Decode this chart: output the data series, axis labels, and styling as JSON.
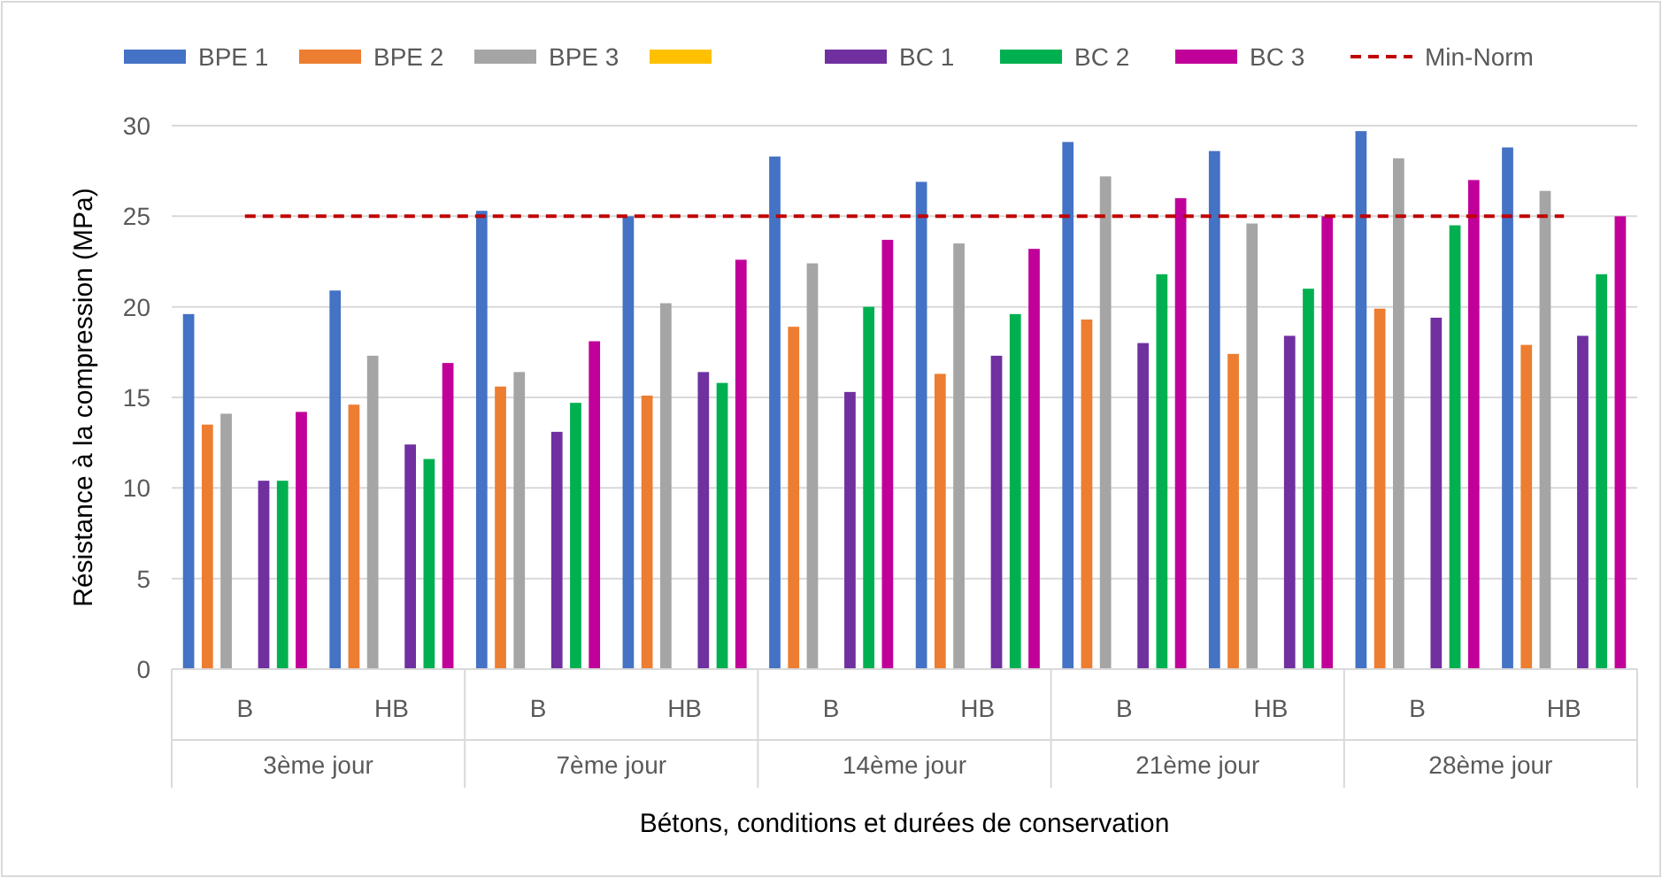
{
  "chart_data": {
    "type": "bar",
    "xlabel": "Bétons, conditions et durées de conservation",
    "ylabel": "Résistance à la compression (MPa)",
    "categories": [
      "B",
      "HB",
      "B",
      "HB",
      "B",
      "HB",
      "B",
      "HB",
      "B",
      "HB"
    ],
    "annotations": [
      "3ème jour",
      "7ème jour",
      "14ème jour",
      "21ème jour",
      "28ème jour"
    ],
    "ylim": [
      0,
      30
    ],
    "yticks": [
      0,
      5,
      10,
      15,
      20,
      25,
      30
    ],
    "grid": "y",
    "legend": "top",
    "series": [
      {
        "name": "BPE 1",
        "color": "#4472c4",
        "values": [
          19.6,
          20.9,
          25.3,
          25.0,
          28.3,
          26.9,
          29.1,
          28.6,
          29.7,
          28.8
        ]
      },
      {
        "name": "BPE 2",
        "color": "#ed7d31",
        "values": [
          13.5,
          14.6,
          15.6,
          15.1,
          18.9,
          16.3,
          19.3,
          17.4,
          19.9,
          17.9
        ]
      },
      {
        "name": "BPE 3",
        "color": "#a5a5a5",
        "values": [
          14.1,
          17.3,
          16.4,
          20.2,
          22.4,
          23.5,
          27.2,
          24.6,
          28.2,
          26.4
        ]
      },
      {
        "color": "#ffc000",
        "values": [
          null,
          null,
          null,
          null,
          null,
          null,
          null,
          null,
          null,
          null
        ]
      },
      {
        "name": "BC 1",
        "color": "#7030a0",
        "values": [
          10.4,
          12.4,
          13.1,
          16.4,
          15.3,
          17.3,
          18.0,
          18.4,
          19.4,
          18.4
        ]
      },
      {
        "name": "BC 2",
        "color": "#00b050",
        "values": [
          10.4,
          11.6,
          14.7,
          15.8,
          20.0,
          19.6,
          21.8,
          21.0,
          24.5,
          21.8
        ]
      },
      {
        "name": "BC 3",
        "color": "#c00099",
        "values": [
          14.2,
          16.9,
          18.1,
          22.6,
          23.7,
          23.2,
          26.0,
          25.0,
          27.0,
          25.0
        ]
      },
      {
        "name": "Min-Norm",
        "type": "line",
        "color": "#c00000",
        "line_style": "dashed",
        "values": [
          25,
          25,
          25,
          25,
          25,
          25,
          25,
          25,
          25,
          25
        ]
      }
    ]
  }
}
